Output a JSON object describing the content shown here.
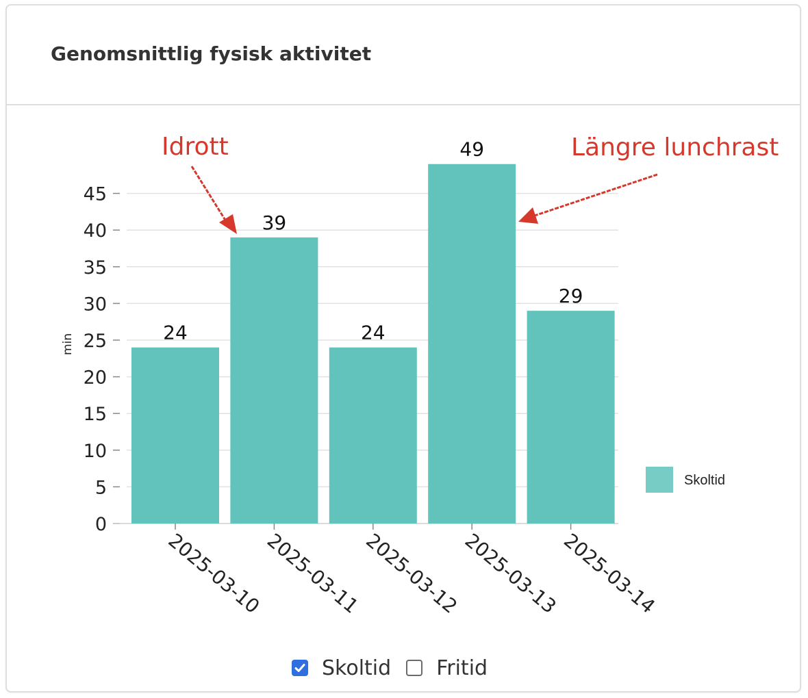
{
  "card": {
    "title": "Genomsnittlig fysisk aktivitet"
  },
  "chart_data": {
    "type": "bar",
    "categories": [
      "2025-03-10",
      "2025-03-11",
      "2025-03-12",
      "2025-03-13",
      "2025-03-14"
    ],
    "series": [
      {
        "name": "Skoltid",
        "values": [
          24,
          39,
          24,
          49,
          29
        ],
        "color": "#62c3bd"
      }
    ],
    "data_labels": [
      "24",
      "39",
      "24",
      "49",
      "29"
    ],
    "ylabel": "min",
    "ylim": [
      0,
      50
    ],
    "yticks": [
      0,
      5,
      10,
      15,
      20,
      25,
      30,
      35,
      40,
      45
    ],
    "grid": true,
    "legend": {
      "position": "right",
      "entries": [
        "Skoltid"
      ],
      "swatch_color": "#77ccc6"
    },
    "annotations": [
      {
        "text": "Idrott",
        "target_category": "2025-03-11",
        "color": "#d6382c"
      },
      {
        "text": "Längre lunchrast",
        "target_category": "2025-03-13",
        "color": "#d6382c"
      }
    ]
  },
  "toggles": [
    {
      "label": "Skoltid",
      "checked": true
    },
    {
      "label": "Fritid",
      "checked": false
    }
  ]
}
